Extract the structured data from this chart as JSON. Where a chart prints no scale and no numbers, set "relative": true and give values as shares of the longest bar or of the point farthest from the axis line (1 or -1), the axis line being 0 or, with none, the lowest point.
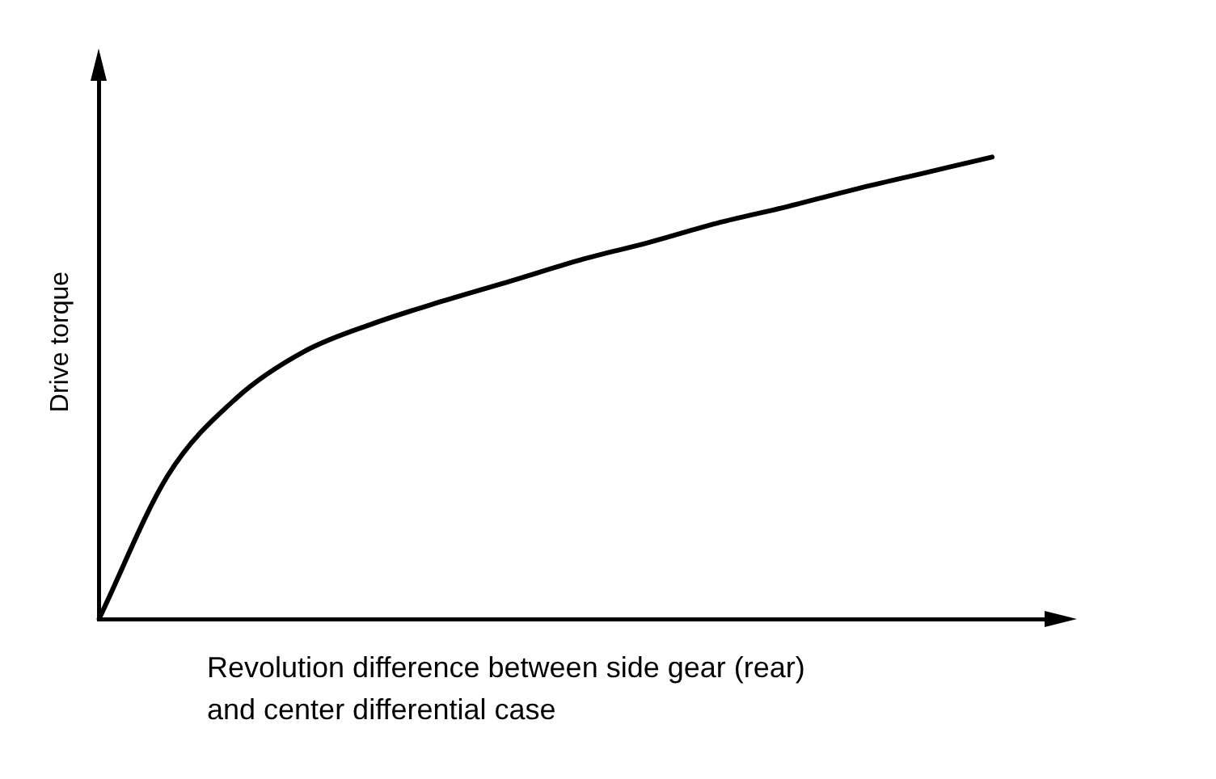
{
  "chart_data": {
    "type": "line",
    "relative": true,
    "xlabel": "Revolution difference between side gear (rear) and center differential case",
    "ylabel": "Drive torque",
    "categories": [
      null,
      null,
      null,
      null,
      null,
      null,
      null,
      null,
      null,
      null,
      null,
      null,
      null,
      null,
      null
    ],
    "series": [
      {
        "color": "#000000",
        "values": [
          0,
          0.31,
          0.478,
          0.58,
          0.64,
          0.688,
          0.732,
          0.777,
          0.815,
          0.857,
          0.892,
          0.93,
          0.965,
          1,
          null
        ]
      }
    ],
    "marker": "none",
    "line_style": "solid",
    "legend": false,
    "grid": false
  }
}
